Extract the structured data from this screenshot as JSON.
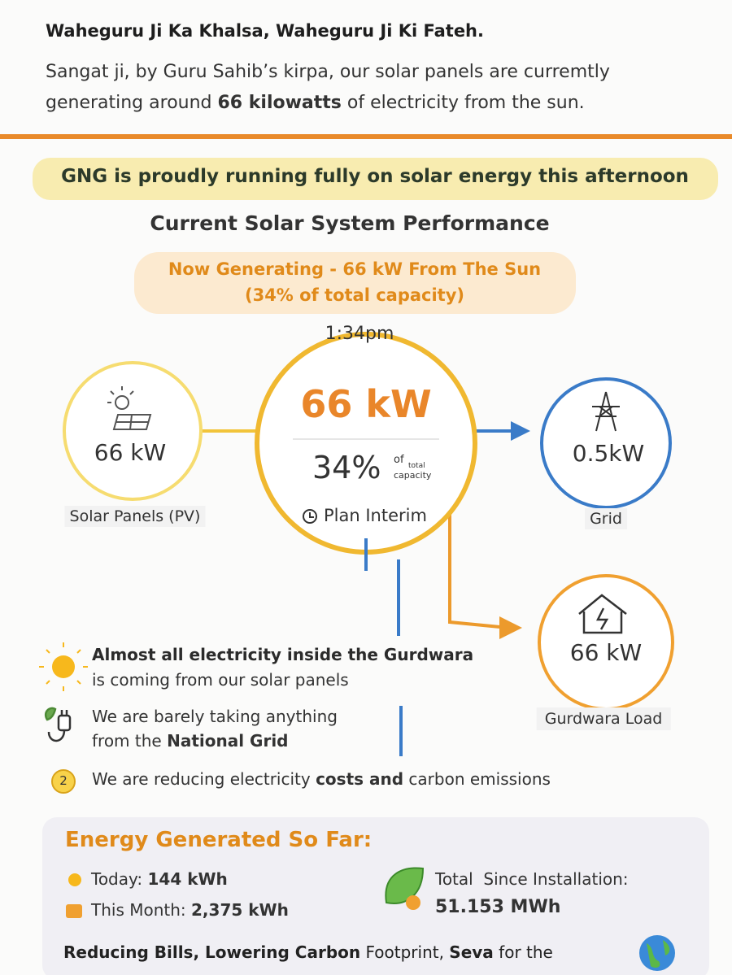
{
  "header": {
    "greeting": "Waheguru Ji Ka Khalsa, Waheguru Ji Ki Fateh.",
    "message": [
      "Sangat ji, by Guru Sahib’s kirpa, our solar panels are curremtly generating around ",
      "66 kilowatts",
      " of electricity from the sun."
    ]
  },
  "banner": "GNG is proudly running fully on solar energy this afternoon",
  "section_title": "Current Solar System Performance",
  "status": {
    "line1": "Now Generating - 66 kW From The Sun",
    "line2": "(34% of total capacity)"
  },
  "time": "1:34pm",
  "nodes": {
    "solar": {
      "value": "66 kW",
      "label": "Solar Panels (PV)"
    },
    "center": {
      "value": "66 kW",
      "percent": "34%",
      "note": [
        "of",
        "total",
        "capacity"
      ],
      "plan": "Plan Interim"
    },
    "grid": {
      "value": "0.5kW",
      "label": "Grid"
    },
    "load": {
      "value": "66 kW",
      "label": "Gurdwara Load"
    }
  },
  "points": [
    {
      "lines": [
        "Almost all electricity inside the Gurdwara",
        "is coming from our solar panels"
      ]
    },
    {
      "lines": [
        "We are barely taking anything",
        "from the ",
        "National Grid"
      ]
    },
    {
      "badge": "2",
      "lines": [
        "We are reducing electricity ",
        "costs and",
        " carbon emissions"
      ]
    }
  ],
  "energy": {
    "title": "Energy Generated So Far:",
    "today": {
      "label": "Today: ",
      "value": "144 kWh"
    },
    "month": {
      "label": "This Month: ",
      "value": "2,375 kWh"
    },
    "total": {
      "label": "Total  Since Installation:",
      "value": "51.153 MWh"
    },
    "footer": [
      "Reducing Bills, Lowering Carbon",
      " Footprint, ",
      "Seva",
      " for the"
    ]
  }
}
